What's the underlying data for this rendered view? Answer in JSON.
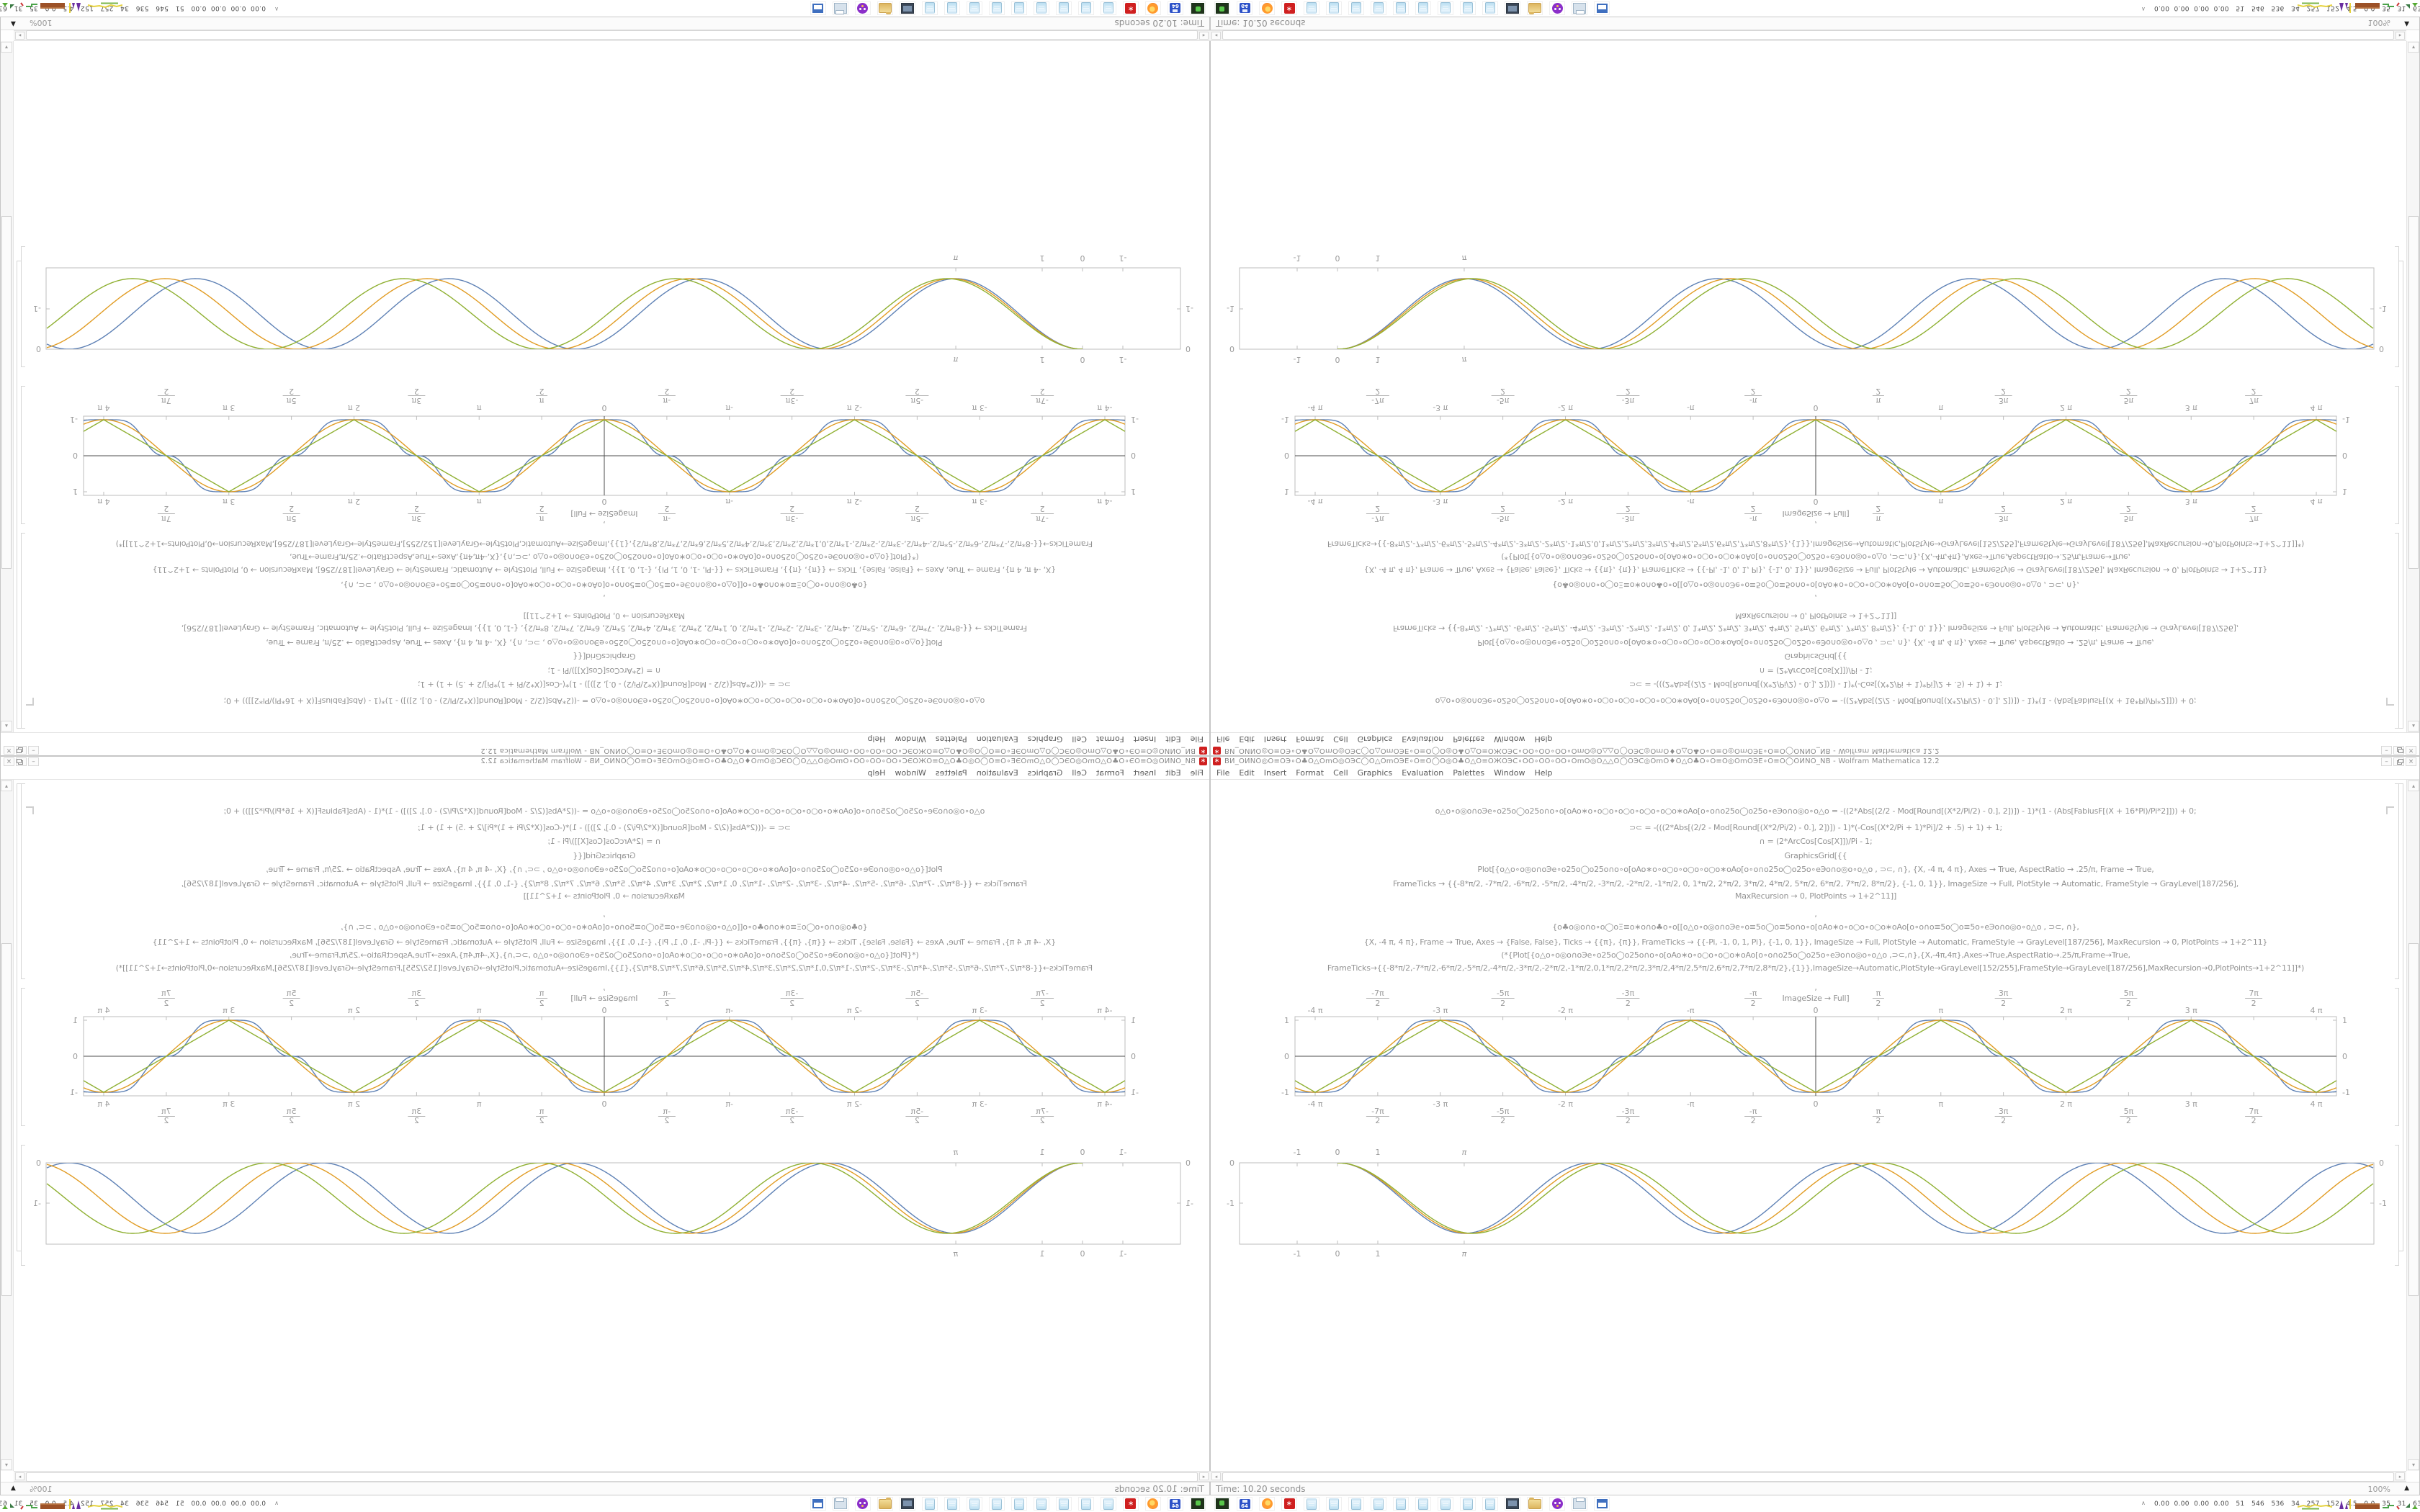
{
  "window": {
    "title": "BИ_ОИNО◎О≡ОЭ∘О♣О△ОmО◎ОЭС◯О△ОmОЭЕ∘О≡О◯О◎О♣О△О≡ОЖОЭС∘ОО∘ОО∘ОО∘ОmО◎О△△О◯ОЭС◎ОmО♦О△О♣О∘О≡О◎ОmОЭЕ∘О≡О◯ОИNO_NB - Wolfram Mathematica 12.2",
    "menu": [
      "File",
      "Edit",
      "Insert",
      "Format",
      "Cell",
      "Graphics",
      "Evaluation",
      "Palettes",
      "Window",
      "Help"
    ],
    "buttons": {
      "minimize": "–",
      "close": "×"
    }
  },
  "icons": {
    "app_star": "∗",
    "scroll_up": "▴",
    "scroll_down": "▾",
    "scroll_left": "◂",
    "scroll_right": "▸",
    "zoom_menu_arrow": "▲",
    "tray_expander": "∧"
  },
  "status": {
    "time": "Time: 10.20 seconds",
    "zoom_level": "100%"
  },
  "taskbar": {
    "tray_numbers": "0.00  0.00  0.00  0.00   51   546   536   34   257   152   4.5   0.0   35   31   63286910",
    "icons": [
      {
        "type": "console",
        "name": "console-app-icon"
      },
      {
        "type": "floppy",
        "name": "floppy-64-icon",
        "label": "64"
      },
      {
        "type": "firefox",
        "name": "firefox-icon"
      },
      {
        "type": "mathematica",
        "name": "mathematica-icon"
      },
      {
        "type": "notepad",
        "name": "notepad-icon"
      },
      {
        "type": "notepad",
        "name": "notepad-icon"
      },
      {
        "type": "notepad",
        "name": "notepad-icon"
      },
      {
        "type": "notepad",
        "name": "notepad-icon"
      },
      {
        "type": "notepad",
        "name": "notepad-icon"
      },
      {
        "type": "notepad",
        "name": "notepad-icon"
      },
      {
        "type": "notepad",
        "name": "notepad-icon"
      },
      {
        "type": "notepad",
        "name": "notepad-icon"
      },
      {
        "type": "notepad",
        "name": "notepad-icon"
      },
      {
        "type": "monitor",
        "name": "monitor-app-icon"
      },
      {
        "type": "folder",
        "name": "folder-icon"
      },
      {
        "type": "purple",
        "name": "purple-app-icon"
      },
      {
        "type": "printer",
        "name": "printer-icon"
      },
      {
        "type": "window",
        "name": "window-app-icon"
      }
    ]
  },
  "code_lines": [
    {
      "y": 36,
      "text": "o△o∘o◎o∩oЭe∘o25o◯o25o∩o∘o[oAo∗o∘o○o∘o○o∘o○o∘o○o∗oAo[o∘o∩o25o◯o25o∘eЭo∩o◎o∘o△o = -((2*Abs[(2/2 - Mod[Round[(X*2/Pi/2) - 0.], 2])]) - 1)*(1 - (Abs[FabiusF[(X + 16*Pi)/Pi*2]])) + 0;"
    },
    {
      "y": 59,
      "text": "⊃⊂ = -(((2*Abs[(2/2 - Mod[Round[(X*2/Pi/2) - 0.], 2])]) - 1)*(-Cos[(X*2/Pi + 1)*Pi]/2 + .5) + 1) + 1;"
    },
    {
      "y": 78,
      "text": "∩ = (2*ArcCos[Cos[X]])/Pi - 1;"
    },
    {
      "y": 98,
      "text": "GraphicsGrid[{{"
    },
    {
      "y": 117,
      "text": "Plot[{o△o∘o◎o∩oЭe∘o25o◯o25o∩o∘o[oAo∗o∘o○o∘o○o∘o○o∗oAo[o∘o∩o25o◯o25o∘eЭo∩o◎o∘o△o , ⊃⊂, ∩}, {X, -4 π, 4 π}, Axes → True, AspectRatio → .25/π, Frame → True,"
    },
    {
      "y": 137,
      "text": "FrameTicks → {{-8*π/2, -7*π/2, -6*π/2, -5*π/2, -4*π/2, -3*π/2, -2*π/2, -1*π/2, 0, 1*π/2, 2*π/2, 3*π/2, 4*π/2, 5*π/2, 6*π/2, 7*π/2, 8*π/2}, {-1, 0, 1}}, ImageSize → Full, PlotStyle → Automatic, FrameStyle → GrayLevel[187/256],"
    },
    {
      "y": 154,
      "text": "MaxRecursion → 0, PlotPoints → 1+2^11]]"
    },
    {
      "y": 179,
      "text": ","
    },
    {
      "y": 197,
      "text": "{o♣o◎o∩o∘o◯oΞ≡o∗o∩o♣o∘o[[o△o∘o◎o∩oЭe∘o≡5o◯o≡5o∩o∘o[oAo∗o∘o○o∘o○o∗oAo[o∘o∩o≡5o◯o≡5o∘eЭo∩o◎o∘o△o , ⊃⊂, ∩},"
    },
    {
      "y": 218,
      "text": "{X, -4 π, 4 π}, Frame → True, Axes → {False, False}, Ticks → {{π}, {π}}, FrameTicks → {{-Pi, -1, 0, 1, Pi}, {-1, 0, 1}}, ImageSize → Full, PlotStyle → Automatic, FrameStyle → GrayLevel[187/256], MaxRecursion → 0, PlotPoints → 1+2^11}"
    },
    {
      "y": 236,
      "text": "(*{Plot[{o△o∘o◎o∩oЭe∘o25o◯o25o∩o∘o[oAo∗o∘o○o∘o○o∗oAo[o∘o∩o25o◯o25o∘eЭo∩o◎o∘o△o ,⊃⊂,∩},{X,-4π,4π},Axes→True,AspectRatio→.25/π,Frame→True,"
    },
    {
      "y": 254,
      "text": "FrameTicks→{{-8*π/2,-7*π/2,-6*π/2,-5*π/2,-4*π/2,-3*π/2,-2*π/2,-1*π/2,0,1*π/2,2*π/2,3*π/2,4*π/2,5*π/2,6*π/2,7*π/2,8*π/2},{1}},ImageSize→Automatic,PlotStyle→GrayLevel[152/255],FrameStyle→GrayLevel[187/256],MaxRecursion→0,PlotPoints→1+2^11]]*)"
    },
    {
      "y": 281,
      "text": ","
    },
    {
      "y": 296,
      "text": "ImageSize → Full]"
    }
  ],
  "chart_data": [
    {
      "type": "line",
      "name": "waveform-comparison-frame-plot",
      "x_tick_labels": [
        "-4 π",
        "-7π/2",
        "-3 π",
        "-5π/2",
        "-2 π",
        "-3π/2",
        "-π",
        "-π/2",
        "0",
        "π/2",
        "π",
        "3π/2",
        "2 π",
        "5π/2",
        "3 π",
        "7π/2",
        "4 π"
      ],
      "y_tick_labels": [
        "1",
        "0",
        "-1"
      ],
      "x_range": [
        -13.07,
        13.07
      ],
      "y_range": [
        -1.1,
        1.1
      ],
      "grid": false,
      "frame": true,
      "axes": true,
      "frame_color": "#bdbdbd",
      "axis_color": "#4d4d4d",
      "label_color": "#9a9a9a",
      "series": [
        {
          "name": "fabius-smoothed-wave",
          "color": "#5e81b5",
          "shape": "smooth"
        },
        {
          "name": "negative-cosine-wave",
          "color": "#e19c24",
          "shape": "cos"
        },
        {
          "name": "triangle-wave",
          "color": "#8fb032",
          "shape": "triangle"
        }
      ]
    },
    {
      "type": "line",
      "name": "phase-drift-cosine-plot",
      "x_tick_labels": [
        "-1",
        "0",
        "1",
        "π"
      ],
      "x_tick_values": [
        -1,
        0,
        1,
        3.14159
      ],
      "y_tick_labels": [
        "0",
        "-1"
      ],
      "y_tick_values": [
        0,
        -1
      ],
      "x_range": [
        -2.43,
        25.7
      ],
      "y_range": [
        -2.02,
        0
      ],
      "amplitude": 0.875,
      "grid": false,
      "frame": true,
      "axes": false,
      "frame_color": "#bdbdbd",
      "label_color": "#9a9a9a",
      "series": [
        {
          "name": "wave-k-1.000",
          "color": "#5e81b5",
          "k": 1.0
        },
        {
          "name": "wave-k-0.967",
          "color": "#e19c24",
          "k": 0.967
        },
        {
          "name": "wave-k-0.934",
          "color": "#8fb032",
          "k": 0.934
        }
      ]
    }
  ]
}
